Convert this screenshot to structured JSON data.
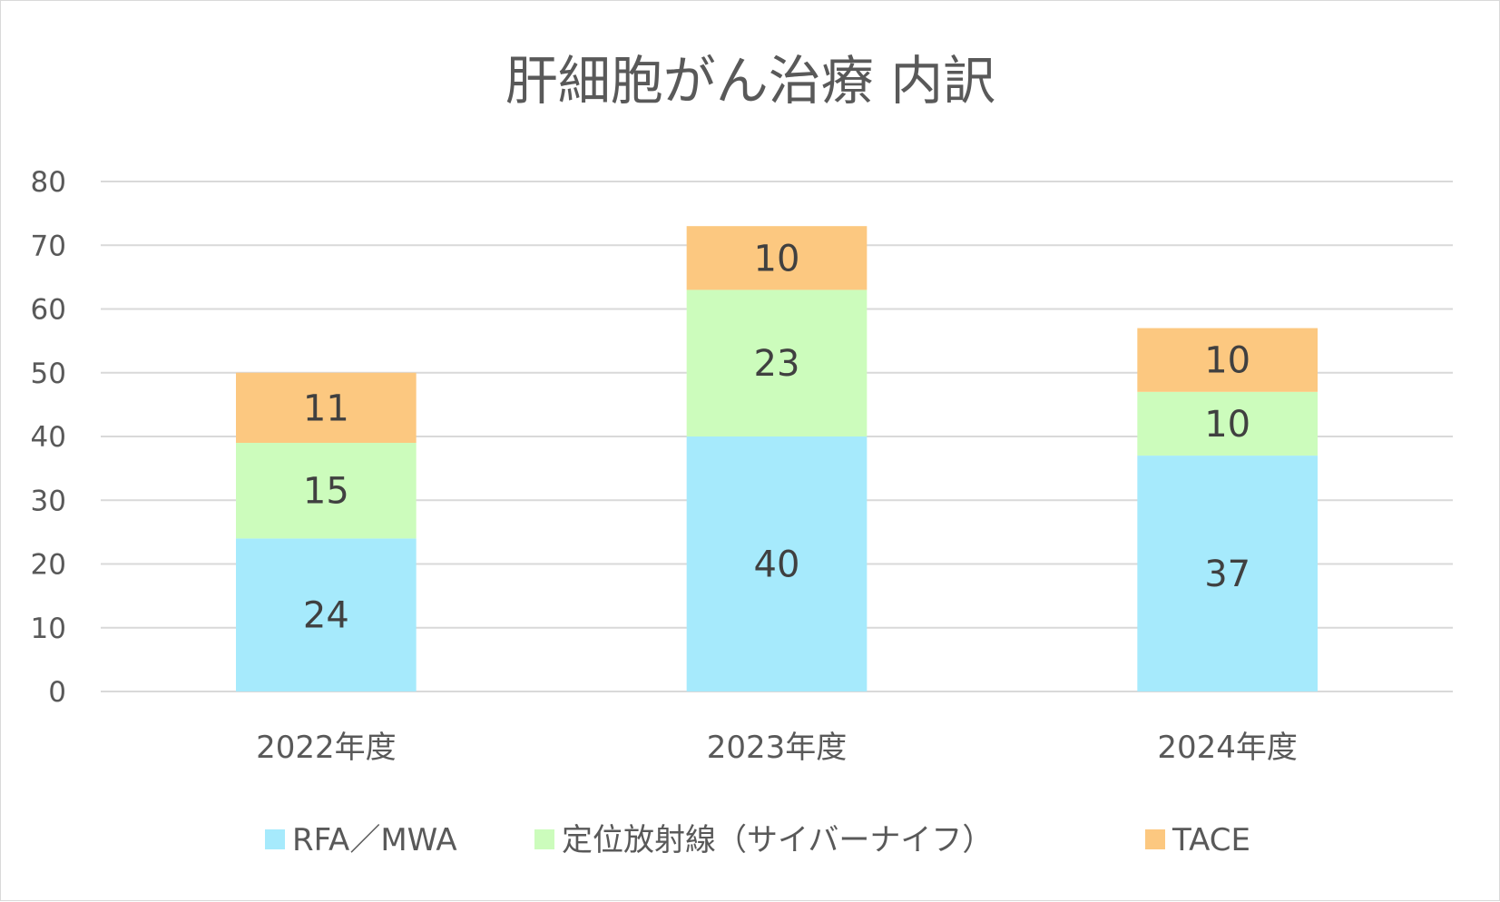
{
  "chart_data": {
    "type": "bar",
    "stacked": true,
    "title": "肝細胞がん治療 内訳",
    "categories": [
      "2022年度",
      "2023年度",
      "2024年度"
    ],
    "series": [
      {
        "name": "RFA／MWA",
        "color": "#a6eafc",
        "values": [
          24,
          40,
          37
        ]
      },
      {
        "name": "定位放射線（サイバーナイフ）",
        "color": "#ccfcbc",
        "values": [
          15,
          23,
          10
        ]
      },
      {
        "name": "TACE",
        "color": "#fcc880",
        "values": [
          11,
          10,
          10
        ]
      }
    ],
    "ylim": [
      0,
      80
    ],
    "yticks": [
      0,
      10,
      20,
      30,
      40,
      50,
      60,
      70,
      80
    ],
    "grid": true,
    "legend_position": "bottom",
    "data_labels": true
  }
}
